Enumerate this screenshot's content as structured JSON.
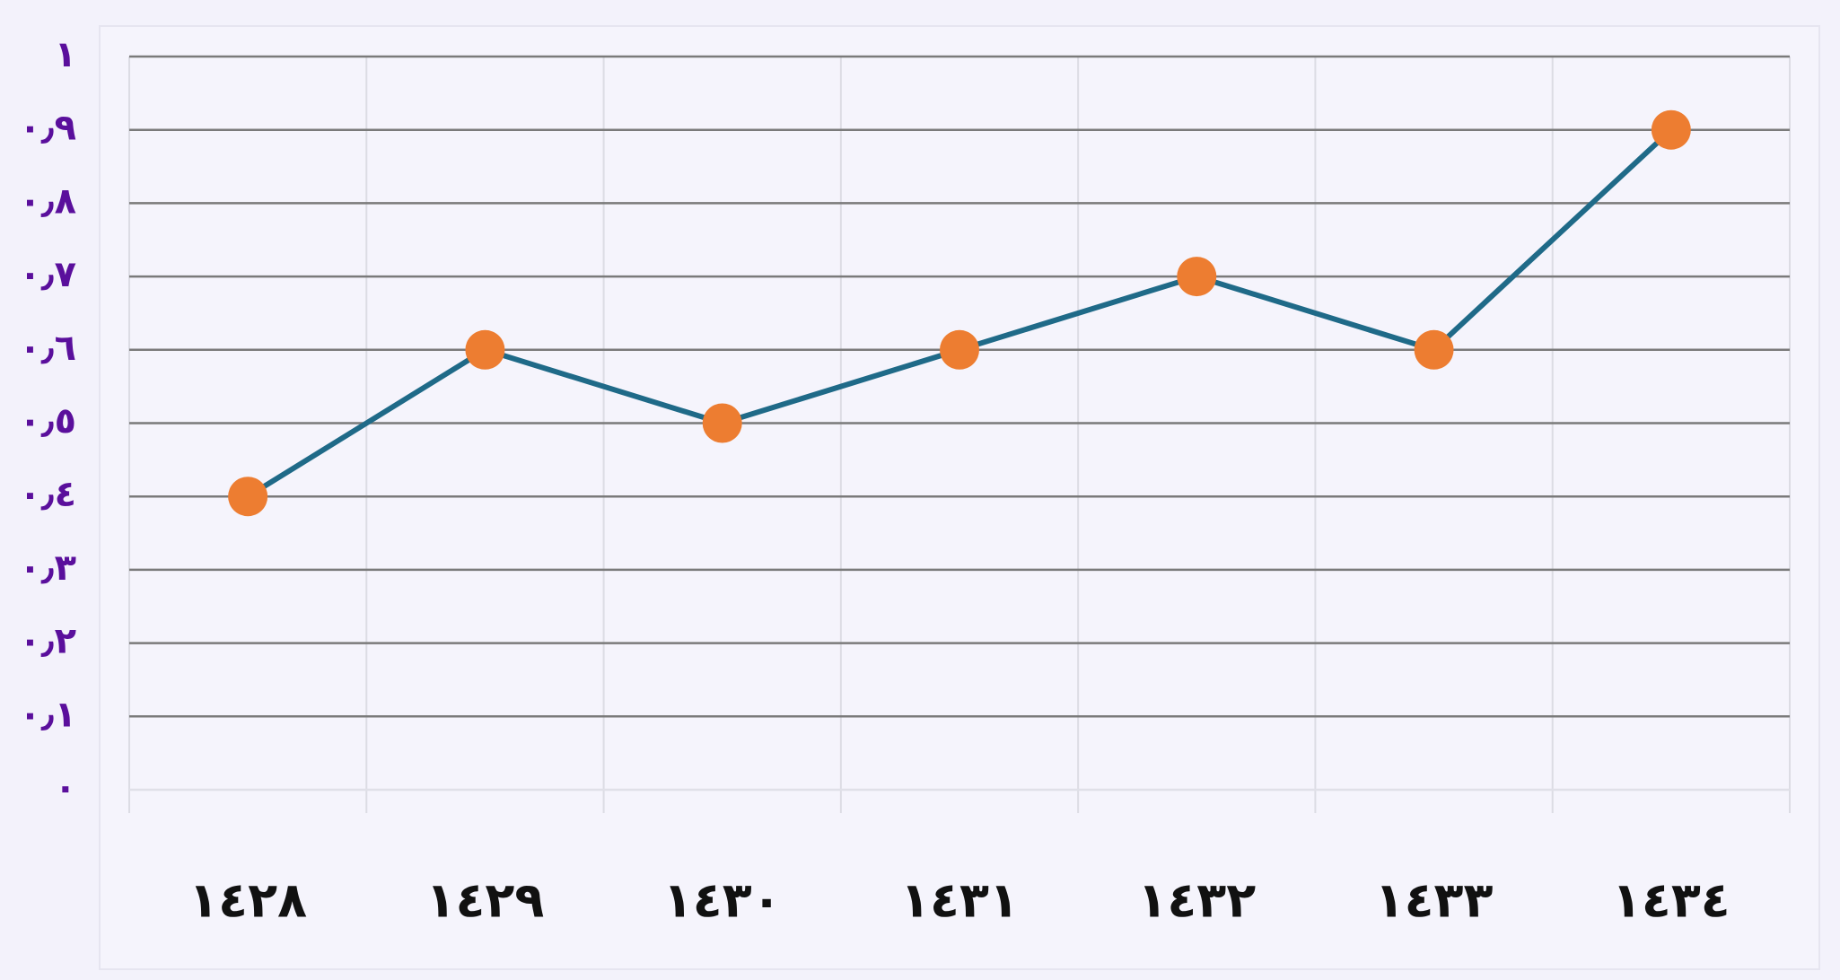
{
  "chart_data": {
    "type": "line",
    "categories": [
      "١٤٢٨",
      "١٤٢٩",
      "١٤٣٠",
      "١٤٣١",
      "١٤٣٢",
      "١٤٣٣",
      "١٤٣٤"
    ],
    "series": [
      {
        "name": "series",
        "color": "#1f6a88",
        "marker_color": "#ed7d31",
        "values": [
          0.4,
          0.6,
          0.5,
          0.6,
          0.7,
          0.6,
          0.9
        ]
      }
    ],
    "ylim": [
      0,
      1
    ],
    "yticks": [
      {
        "value": 0,
        "label": "٠"
      },
      {
        "value": 0.1,
        "label": "٠٫١"
      },
      {
        "value": 0.2,
        "label": "٠٫٢"
      },
      {
        "value": 0.3,
        "label": "٠٫٣"
      },
      {
        "value": 0.4,
        "label": "٠٫٤"
      },
      {
        "value": 0.5,
        "label": "٠٫٥"
      },
      {
        "value": 0.6,
        "label": "٠٫٦"
      },
      {
        "value": 0.7,
        "label": "٠٫٧"
      },
      {
        "value": 0.8,
        "label": "٠٫٨"
      },
      {
        "value": 0.9,
        "label": "٠٫٩"
      },
      {
        "value": 1,
        "label": "١"
      }
    ],
    "grid": true
  }
}
